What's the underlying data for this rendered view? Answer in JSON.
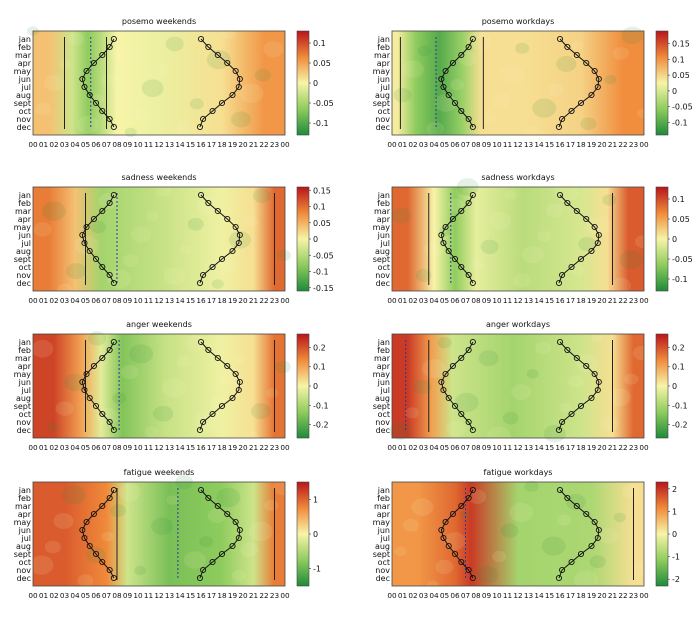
{
  "chart_data": {
    "type": "heatmap",
    "months": [
      "jan",
      "feb",
      "mar",
      "apr",
      "may",
      "jun",
      "jul",
      "aug",
      "sept",
      "oct",
      "nov",
      "dec"
    ],
    "hours": [
      "00",
      "01",
      "02",
      "03",
      "04",
      "05",
      "06",
      "07",
      "08",
      "09",
      "10",
      "11",
      "12",
      "13",
      "14",
      "15",
      "16",
      "17",
      "18",
      "19",
      "20",
      "21",
      "22",
      "23",
      "00"
    ],
    "sunrise_hour": [
      7.7,
      7.3,
      6.6,
      5.8,
      5.1,
      4.7,
      4.9,
      5.4,
      6.0,
      6.6,
      7.3,
      7.7
    ],
    "sunset_hour": [
      16.0,
      16.7,
      17.6,
      18.5,
      19.3,
      19.7,
      19.6,
      19.0,
      18.0,
      17.1,
      16.2,
      15.9
    ],
    "panels": [
      {
        "title": "posemo weekends",
        "ticks": [
          "0.1",
          "0.05",
          "0",
          "-0.05",
          "-0.1"
        ],
        "range": [
          -0.13,
          0.13
        ],
        "wake_line_hour": 3.0,
        "wake_line_style": "solid",
        "min_line_hour": 5.5,
        "min_line_style": "dashed",
        "extra_line_hour": 7.0,
        "extra_line_style": "solid"
      },
      {
        "title": "posemo workdays",
        "ticks": [
          "0.15",
          "0.1",
          "0.05",
          "0",
          "-0.05",
          "-0.1"
        ],
        "range": [
          -0.14,
          0.19
        ],
        "wake_line_hour": 0.8,
        "wake_line_style": "solid",
        "min_line_hour": 4.2,
        "min_line_style": "dashed",
        "extra_line_hour": 8.7,
        "extra_line_style": "solid"
      },
      {
        "title": "sadness weekends",
        "ticks": [
          "0.15",
          "0.1",
          "0.05",
          "0",
          "-0.05",
          "-0.1",
          "-0.15"
        ],
        "range": [
          -0.16,
          0.16
        ],
        "wake_line_hour": 5.0,
        "wake_line_style": "solid",
        "min_line_hour": 8.0,
        "min_line_style": "dashed",
        "extra_line_hour": 23.0,
        "extra_line_style": "solid"
      },
      {
        "title": "sadness workdays",
        "ticks": [
          "0.1",
          "0.05",
          "0",
          "-0.05",
          "-0.1"
        ],
        "range": [
          -0.13,
          0.13
        ],
        "wake_line_hour": 3.5,
        "wake_line_style": "solid",
        "min_line_hour": 5.6,
        "min_line_style": "dashed",
        "extra_line_hour": 21.0,
        "extra_line_style": "solid"
      },
      {
        "title": "anger weekends",
        "ticks": [
          "0.2",
          "0.1",
          "0",
          "-0.1",
          "-0.2"
        ],
        "range": [
          -0.27,
          0.27
        ],
        "wake_line_hour": 5.0,
        "wake_line_style": "solid",
        "min_line_hour": 8.2,
        "min_line_style": "dashed",
        "extra_line_hour": 23.0,
        "extra_line_style": "solid"
      },
      {
        "title": "anger workdays",
        "ticks": [
          "0.2",
          "0.1",
          "0",
          "-0.1",
          "-0.2"
        ],
        "range": [
          -0.27,
          0.27
        ],
        "wake_line_hour": 1.3,
        "wake_line_style": "dashed",
        "min_line_hour": 3.5,
        "min_line_style": "solid",
        "extra_line_hour": 21.0,
        "extra_line_style": "solid"
      },
      {
        "title": "fatigue weekends",
        "ticks": [
          "1",
          "0",
          "-1"
        ],
        "range": [
          -1.5,
          1.5
        ],
        "wake_line_hour": 8.0,
        "wake_line_style": "solid",
        "min_line_hour": 13.8,
        "min_line_style": "dashed",
        "extra_line_hour": 23.0,
        "extra_line_style": "solid"
      },
      {
        "title": "fatigue workdays",
        "ticks": [
          "2",
          "1",
          "0",
          "-1",
          "-2"
        ],
        "range": [
          -2.3,
          2.3
        ],
        "wake_line_hour": 7.0,
        "wake_line_style": "dashed",
        "min_line_hour": 23.0,
        "min_line_style": "solid",
        "extra_line_hour": null,
        "extra_line_style": "none"
      }
    ],
    "colormap": [
      "#1f8a3b",
      "#8fcc5e",
      "#f7f4a8",
      "#f08a3a",
      "#b8151b"
    ]
  }
}
